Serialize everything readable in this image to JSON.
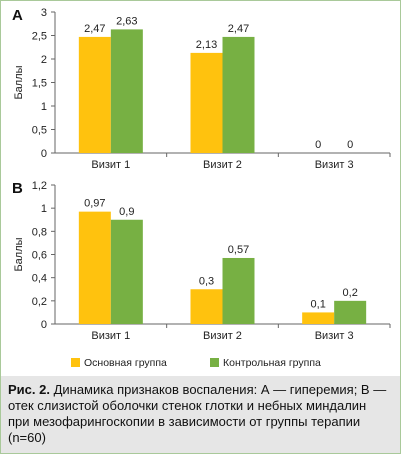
{
  "chart_data": [
    {
      "type": "bar",
      "panel_label": "A",
      "ylabel": "Баллы",
      "ylim": [
        0,
        3
      ],
      "yticks": [
        "0",
        "0,5",
        "1",
        "1,5",
        "2",
        "2,5",
        "3"
      ],
      "ytick_values": [
        0,
        0.5,
        1,
        1.5,
        2,
        2.5,
        3
      ],
      "categories": [
        "Визит 1",
        "Визит 2",
        "Визит 3"
      ],
      "series": [
        {
          "name": "Основная группа",
          "values": [
            2.47,
            2.13,
            0
          ],
          "labels": [
            "2,47",
            "2,13",
            "0"
          ]
        },
        {
          "name": "Контрольная группа",
          "values": [
            2.63,
            2.47,
            0
          ],
          "labels": [
            "2,63",
            "2,47",
            "0"
          ]
        }
      ],
      "grid": false
    },
    {
      "type": "bar",
      "panel_label": "B",
      "ylabel": "Баллы",
      "ylim": [
        0,
        1.2
      ],
      "yticks": [
        "0",
        "0,2",
        "0,4",
        "0,6",
        "0,8",
        "1",
        "1,2"
      ],
      "ytick_values": [
        0,
        0.2,
        0.4,
        0.6,
        0.8,
        1,
        1.2
      ],
      "categories": [
        "Визит 1",
        "Визит 2",
        "Визит 3"
      ],
      "series": [
        {
          "name": "Основная группа",
          "values": [
            0.97,
            0.3,
            0.1
          ],
          "labels": [
            "0,97",
            "0,3",
            "0,1"
          ]
        },
        {
          "name": "Контрольная группа",
          "values": [
            0.9,
            0.57,
            0.2
          ],
          "labels": [
            "0,9",
            "0,57",
            "0,2"
          ]
        }
      ],
      "grid": false
    }
  ],
  "legend": {
    "placement": "bottom",
    "items": [
      {
        "label": "Основная группа",
        "color": "#FFC20E"
      },
      {
        "label": "Контрольная группа",
        "color": "#77B043"
      }
    ]
  },
  "colors": {
    "series_1": "#FFC20E",
    "series_2": "#77B043",
    "frame": "#A9C99A",
    "caption_bg": "#E6E6E6"
  },
  "caption": {
    "prefix": "Рис. 2.",
    "text": " Динамика признаков воспаления: А — гиперемия; B — отек слизистой оболочки стенок глотки и небных миндалин при мезофарингоскопии в зависимости от группы терапии (n=60)"
  }
}
